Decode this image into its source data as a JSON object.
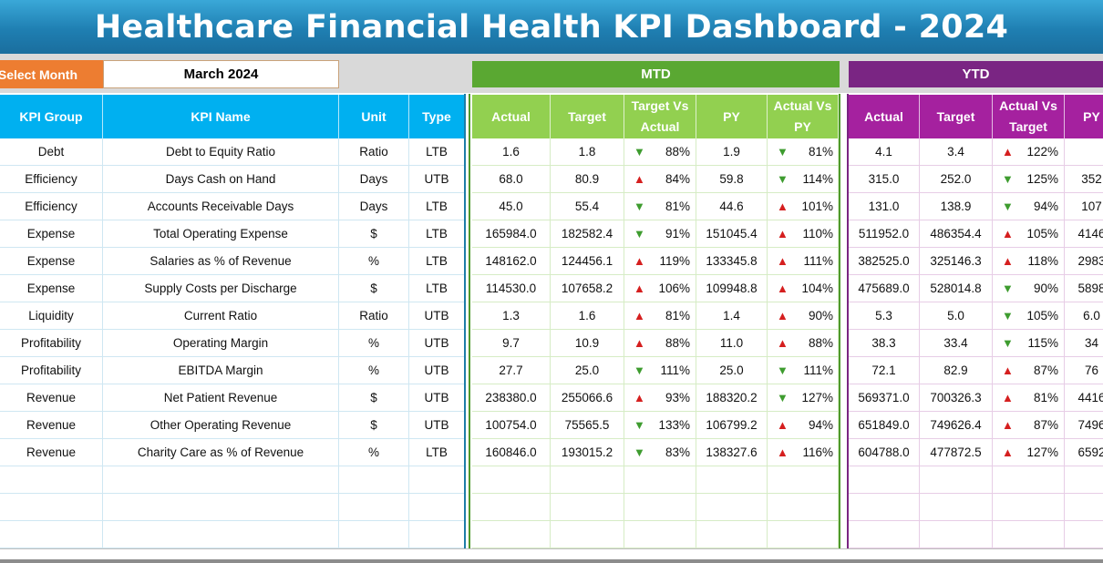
{
  "title": "Healthcare Financial Health KPI Dashboard - 2024",
  "selector": {
    "label": "Select Month",
    "value": "March 2024"
  },
  "sections": {
    "mtd": "MTD",
    "ytd": "YTD"
  },
  "columns": {
    "left": [
      "KPI Group",
      "KPI Name",
      "Unit",
      "Type"
    ],
    "mtd": [
      "Actual",
      "Target",
      "Target Vs Actual",
      "PY",
      "Actual Vs PY"
    ],
    "ytd": [
      "Actual",
      "Target",
      "Actual Vs Target",
      "PY"
    ]
  },
  "colors": {
    "title": "#1f7fb2",
    "select": "#ed7d31",
    "mtd": "#5aa832",
    "ytd": "#7a2583",
    "header_blue": "#00b0f0",
    "header_green": "#92d050",
    "header_purple": "#a5219f",
    "arrow_up": "#d51f1f",
    "arrow_down": "#3e9c2f"
  },
  "rows": [
    {
      "group": "Debt",
      "name": "Debt to Equity Ratio",
      "unit": "Ratio",
      "type": "LTB",
      "mtd_actual": "1.6",
      "mtd_target": "1.8",
      "mtd_tva_dir": "down",
      "mtd_tva": "88%",
      "mtd_py": "1.9",
      "mtd_avp_dir": "down",
      "mtd_avp": "81%",
      "ytd_actual": "4.1",
      "ytd_target": "3.4",
      "ytd_avt_dir": "up",
      "ytd_avt": "122%",
      "ytd_py": ""
    },
    {
      "group": "Efficiency",
      "name": "Days Cash on Hand",
      "unit": "Days",
      "type": "UTB",
      "mtd_actual": "68.0",
      "mtd_target": "80.9",
      "mtd_tva_dir": "up",
      "mtd_tva": "84%",
      "mtd_py": "59.8",
      "mtd_avp_dir": "down",
      "mtd_avp": "114%",
      "ytd_actual": "315.0",
      "ytd_target": "252.0",
      "ytd_avt_dir": "down",
      "ytd_avt": "125%",
      "ytd_py": "352"
    },
    {
      "group": "Efficiency",
      "name": "Accounts Receivable Days",
      "unit": "Days",
      "type": "LTB",
      "mtd_actual": "45.0",
      "mtd_target": "55.4",
      "mtd_tva_dir": "down",
      "mtd_tva": "81%",
      "mtd_py": "44.6",
      "mtd_avp_dir": "up",
      "mtd_avp": "101%",
      "ytd_actual": "131.0",
      "ytd_target": "138.9",
      "ytd_avt_dir": "down",
      "ytd_avt": "94%",
      "ytd_py": "107"
    },
    {
      "group": "Expense",
      "name": "Total Operating Expense",
      "unit": "$",
      "type": "LTB",
      "mtd_actual": "165984.0",
      "mtd_target": "182582.4",
      "mtd_tva_dir": "down",
      "mtd_tva": "91%",
      "mtd_py": "151045.4",
      "mtd_avp_dir": "up",
      "mtd_avp": "110%",
      "ytd_actual": "511952.0",
      "ytd_target": "486354.4",
      "ytd_avt_dir": "up",
      "ytd_avt": "105%",
      "ytd_py": "4146"
    },
    {
      "group": "Expense",
      "name": "Salaries as % of Revenue",
      "unit": "%",
      "type": "LTB",
      "mtd_actual": "148162.0",
      "mtd_target": "124456.1",
      "mtd_tva_dir": "up",
      "mtd_tva": "119%",
      "mtd_py": "133345.8",
      "mtd_avp_dir": "up",
      "mtd_avp": "111%",
      "ytd_actual": "382525.0",
      "ytd_target": "325146.3",
      "ytd_avt_dir": "up",
      "ytd_avt": "118%",
      "ytd_py": "2983"
    },
    {
      "group": "Expense",
      "name": "Supply Costs per Discharge",
      "unit": "$",
      "type": "LTB",
      "mtd_actual": "114530.0",
      "mtd_target": "107658.2",
      "mtd_tva_dir": "up",
      "mtd_tva": "106%",
      "mtd_py": "109948.8",
      "mtd_avp_dir": "up",
      "mtd_avp": "104%",
      "ytd_actual": "475689.0",
      "ytd_target": "528014.8",
      "ytd_avt_dir": "down",
      "ytd_avt": "90%",
      "ytd_py": "5898"
    },
    {
      "group": "Liquidity",
      "name": "Current Ratio",
      "unit": "Ratio",
      "type": "UTB",
      "mtd_actual": "1.3",
      "mtd_target": "1.6",
      "mtd_tva_dir": "up",
      "mtd_tva": "81%",
      "mtd_py": "1.4",
      "mtd_avp_dir": "up",
      "mtd_avp": "90%",
      "ytd_actual": "5.3",
      "ytd_target": "5.0",
      "ytd_avt_dir": "down",
      "ytd_avt": "105%",
      "ytd_py": "6.0"
    },
    {
      "group": "Profitability",
      "name": "Operating Margin",
      "unit": "%",
      "type": "UTB",
      "mtd_actual": "9.7",
      "mtd_target": "10.9",
      "mtd_tva_dir": "up",
      "mtd_tva": "88%",
      "mtd_py": "11.0",
      "mtd_avp_dir": "up",
      "mtd_avp": "88%",
      "ytd_actual": "38.3",
      "ytd_target": "33.4",
      "ytd_avt_dir": "down",
      "ytd_avt": "115%",
      "ytd_py": "34"
    },
    {
      "group": "Profitability",
      "name": "EBITDA Margin",
      "unit": "%",
      "type": "UTB",
      "mtd_actual": "27.7",
      "mtd_target": "25.0",
      "mtd_tva_dir": "down",
      "mtd_tva": "111%",
      "mtd_py": "25.0",
      "mtd_avp_dir": "down",
      "mtd_avp": "111%",
      "ytd_actual": "72.1",
      "ytd_target": "82.9",
      "ytd_avt_dir": "up",
      "ytd_avt": "87%",
      "ytd_py": "76"
    },
    {
      "group": "Revenue",
      "name": "Net Patient Revenue",
      "unit": "$",
      "type": "UTB",
      "mtd_actual": "238380.0",
      "mtd_target": "255066.6",
      "mtd_tva_dir": "up",
      "mtd_tva": "93%",
      "mtd_py": "188320.2",
      "mtd_avp_dir": "down",
      "mtd_avp": "127%",
      "ytd_actual": "569371.0",
      "ytd_target": "700326.3",
      "ytd_avt_dir": "up",
      "ytd_avt": "81%",
      "ytd_py": "4416"
    },
    {
      "group": "Revenue",
      "name": "Other Operating Revenue",
      "unit": "$",
      "type": "UTB",
      "mtd_actual": "100754.0",
      "mtd_target": "75565.5",
      "mtd_tva_dir": "down",
      "mtd_tva": "133%",
      "mtd_py": "106799.2",
      "mtd_avp_dir": "up",
      "mtd_avp": "94%",
      "ytd_actual": "651849.0",
      "ytd_target": "749626.4",
      "ytd_avt_dir": "up",
      "ytd_avt": "87%",
      "ytd_py": "7496"
    },
    {
      "group": "Revenue",
      "name": "Charity Care as % of Revenue",
      "unit": "%",
      "type": "LTB",
      "mtd_actual": "160846.0",
      "mtd_target": "193015.2",
      "mtd_tva_dir": "down",
      "mtd_tva": "83%",
      "mtd_py": "138327.6",
      "mtd_avp_dir": "up",
      "mtd_avp": "116%",
      "ytd_actual": "604788.0",
      "ytd_target": "477872.5",
      "ytd_avt_dir": "up",
      "ytd_avt": "127%",
      "ytd_py": "6592"
    }
  ]
}
